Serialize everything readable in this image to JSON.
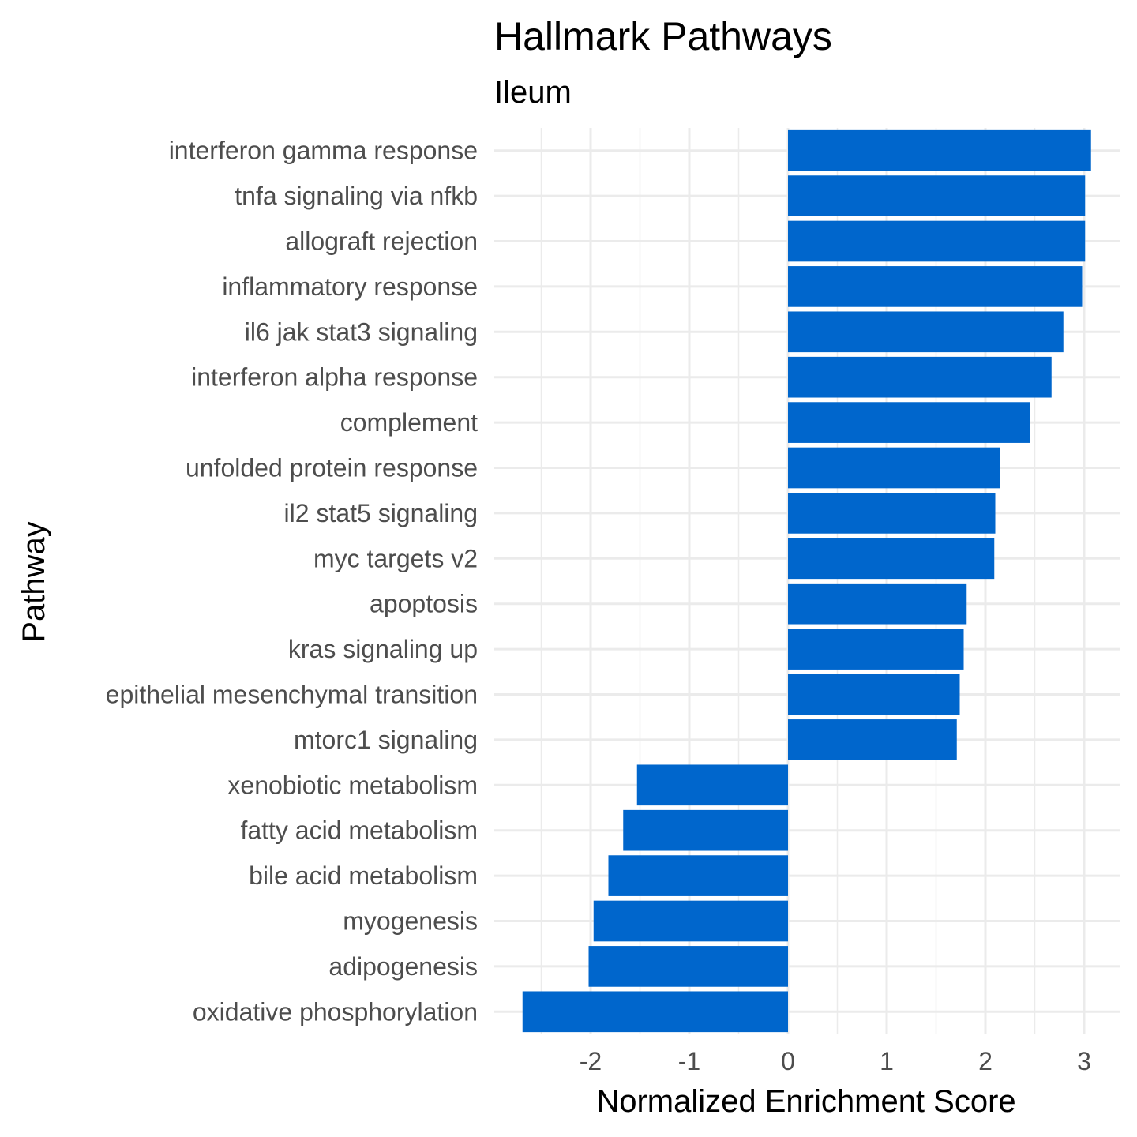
{
  "chart_data": {
    "type": "bar",
    "orientation": "horizontal",
    "title": "Hallmark Pathways",
    "subtitle": "Ileum",
    "xlabel": "Normalized Enrichment Score",
    "ylabel": "Pathway",
    "xlim": [
      -2.77,
      3.36
    ],
    "xticks": [
      -2,
      -1,
      0,
      1,
      2,
      3
    ],
    "xtick_labels": [
      "-2",
      "-1",
      "0",
      "1",
      "2",
      "3"
    ],
    "grid": true,
    "legend": "none",
    "bar_color": "#0066CC",
    "grid_color": "#EBEBEB",
    "categories": [
      "interferon gamma response",
      "tnfa signaling via nfkb",
      "allograft rejection",
      "inflammatory response",
      "il6 jak stat3 signaling",
      "interferon alpha response",
      "complement",
      "unfolded protein response",
      "il2 stat5 signaling",
      "myc targets v2",
      "apoptosis",
      "kras signaling up",
      "epithelial mesenchymal transition",
      "mtorc1 signaling",
      "xenobiotic metabolism",
      "fatty acid metabolism",
      "bile acid metabolism",
      "myogenesis",
      "adipogenesis",
      "oxidative phosphorylation"
    ],
    "values": [
      3.07,
      3.01,
      3.01,
      2.98,
      2.79,
      2.67,
      2.45,
      2.15,
      2.1,
      2.09,
      1.81,
      1.78,
      1.74,
      1.71,
      -1.53,
      -1.67,
      -1.82,
      -1.97,
      -2.02,
      -2.69
    ]
  }
}
